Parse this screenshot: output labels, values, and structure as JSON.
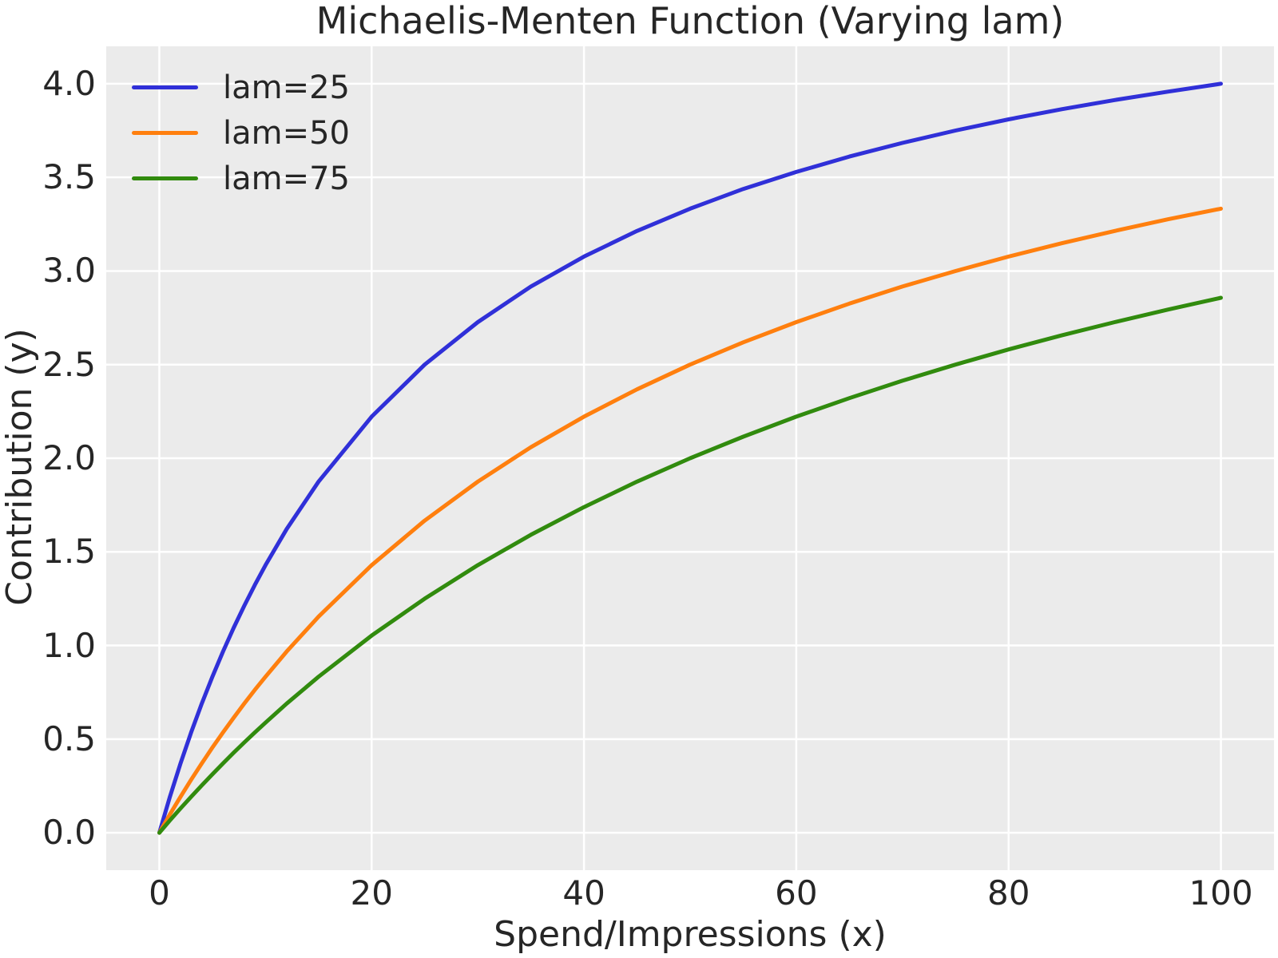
{
  "figure": {
    "background": "#ffffff",
    "plot_background": "#ebebeb",
    "grid_color": "#ffffff",
    "text_color": "#262626"
  },
  "chart_data": {
    "type": "line",
    "title": "Michaelis-Menten Function (Varying lam)",
    "xlabel": "Spend/Impressions (x)",
    "ylabel": "Contribution (y)",
    "xlim": [
      -5,
      105
    ],
    "ylim": [
      -0.2,
      4.2
    ],
    "grid": true,
    "legend_position": "upper-left",
    "legend_frame": false,
    "xticks": [
      {
        "value": 0,
        "label": "0"
      },
      {
        "value": 20,
        "label": "20"
      },
      {
        "value": 40,
        "label": "40"
      },
      {
        "value": 60,
        "label": "60"
      },
      {
        "value": 80,
        "label": "80"
      },
      {
        "value": 100,
        "label": "100"
      }
    ],
    "yticks": [
      {
        "value": 0.0,
        "label": "0.0"
      },
      {
        "value": 0.5,
        "label": "0.5"
      },
      {
        "value": 1.0,
        "label": "1.0"
      },
      {
        "value": 1.5,
        "label": "1.5"
      },
      {
        "value": 2.0,
        "label": "2.0"
      },
      {
        "value": 2.5,
        "label": "2.5"
      },
      {
        "value": 3.0,
        "label": "3.0"
      },
      {
        "value": 3.5,
        "label": "3.5"
      },
      {
        "value": 4.0,
        "label": "4.0"
      }
    ],
    "x": [
      0,
      1,
      2,
      3,
      4,
      5,
      6,
      7,
      8,
      9,
      10,
      12,
      15,
      20,
      25,
      30,
      35,
      40,
      45,
      50,
      55,
      60,
      65,
      70,
      75,
      80,
      85,
      90,
      95,
      100
    ],
    "series": [
      {
        "name": "lam=25",
        "color": "#3030d8",
        "values": [
          0,
          0.192,
          0.37,
          0.536,
          0.69,
          0.833,
          0.968,
          1.094,
          1.212,
          1.324,
          1.429,
          1.622,
          1.875,
          2.222,
          2.5,
          2.727,
          2.917,
          3.077,
          3.214,
          3.333,
          3.438,
          3.529,
          3.611,
          3.684,
          3.75,
          3.81,
          3.864,
          3.913,
          3.958,
          4.0
        ]
      },
      {
        "name": "lam=50",
        "color": "#ff7f0e",
        "values": [
          0,
          0.098,
          0.192,
          0.283,
          0.37,
          0.455,
          0.536,
          0.614,
          0.69,
          0.763,
          0.833,
          0.968,
          1.154,
          1.429,
          1.667,
          1.875,
          2.059,
          2.222,
          2.368,
          2.5,
          2.619,
          2.727,
          2.826,
          2.917,
          3.0,
          3.077,
          3.148,
          3.214,
          3.276,
          3.333
        ]
      },
      {
        "name": "lam=75",
        "color": "#318b0e",
        "values": [
          0,
          0.066,
          0.13,
          0.192,
          0.253,
          0.312,
          0.37,
          0.427,
          0.482,
          0.536,
          0.588,
          0.69,
          0.833,
          1.053,
          1.25,
          1.429,
          1.591,
          1.739,
          1.875,
          2.0,
          2.115,
          2.222,
          2.321,
          2.414,
          2.5,
          2.581,
          2.656,
          2.727,
          2.794,
          2.857
        ]
      }
    ]
  }
}
